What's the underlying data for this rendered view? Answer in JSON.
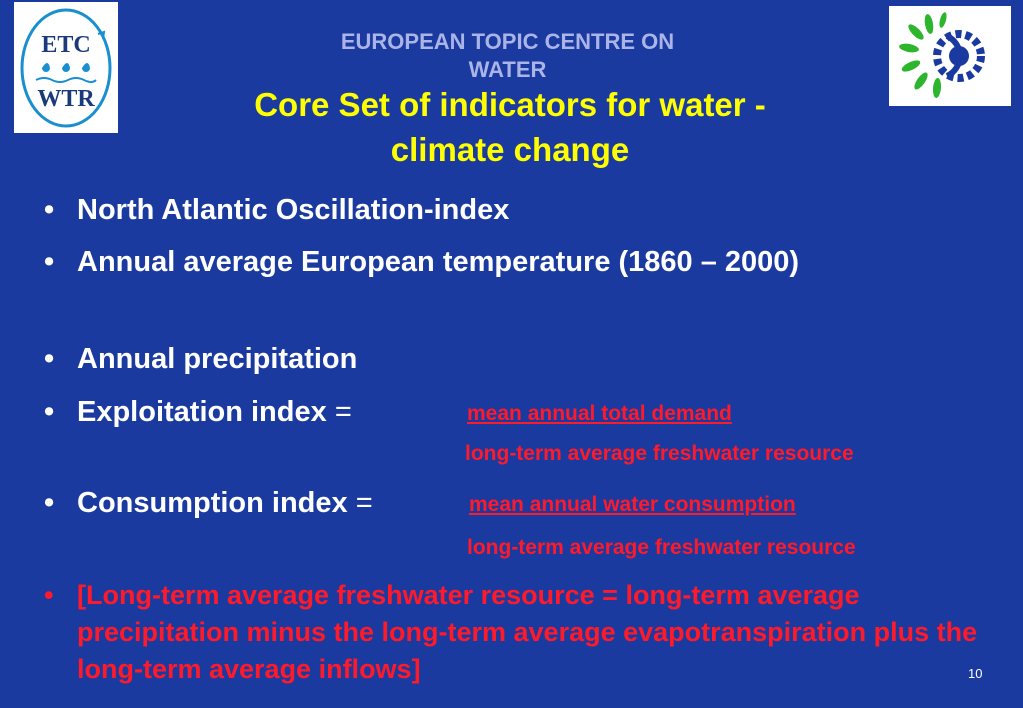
{
  "header": {
    "org_line1": "EUROPEAN TOPIC CENTRE ON",
    "org_line2": "WATER",
    "title_line1": "Core Set of indicators for water -",
    "title_line2": "climate change"
  },
  "logos": {
    "left": {
      "text_top": "ETC",
      "text_bottom": "WTR",
      "icon": "etc-wtr-logo"
    },
    "right": {
      "icon": "eea-sun-gear-logo"
    }
  },
  "bullets": {
    "nao": "North Atlantic Oscillation-index",
    "temperature": "Annual average European temperature (1860 – 2000)",
    "precipitation": "Annual precipitation",
    "exploitation_label": "Exploitation index",
    "exploitation_eq": "=",
    "exploitation_numerator": "mean annual total demand",
    "exploitation_denominator": "long-term average freshwater resource",
    "consumption_label": "Consumption index",
    "consumption_eq": "=",
    "consumption_numerator": "mean annual water consumption",
    "consumption_denominator": "long-term average freshwater resource",
    "note": "[Long-term average freshwater resource = long-term average precipitation minus the long-term average evapotranspiration plus the long-term average inflows]",
    "bullet_symbol": "•"
  },
  "page_number": "10",
  "colors": {
    "background": "#1a3aa0",
    "title": "#ffff00",
    "header": "#aab4e6",
    "accent_red": "#ff1a2a"
  }
}
